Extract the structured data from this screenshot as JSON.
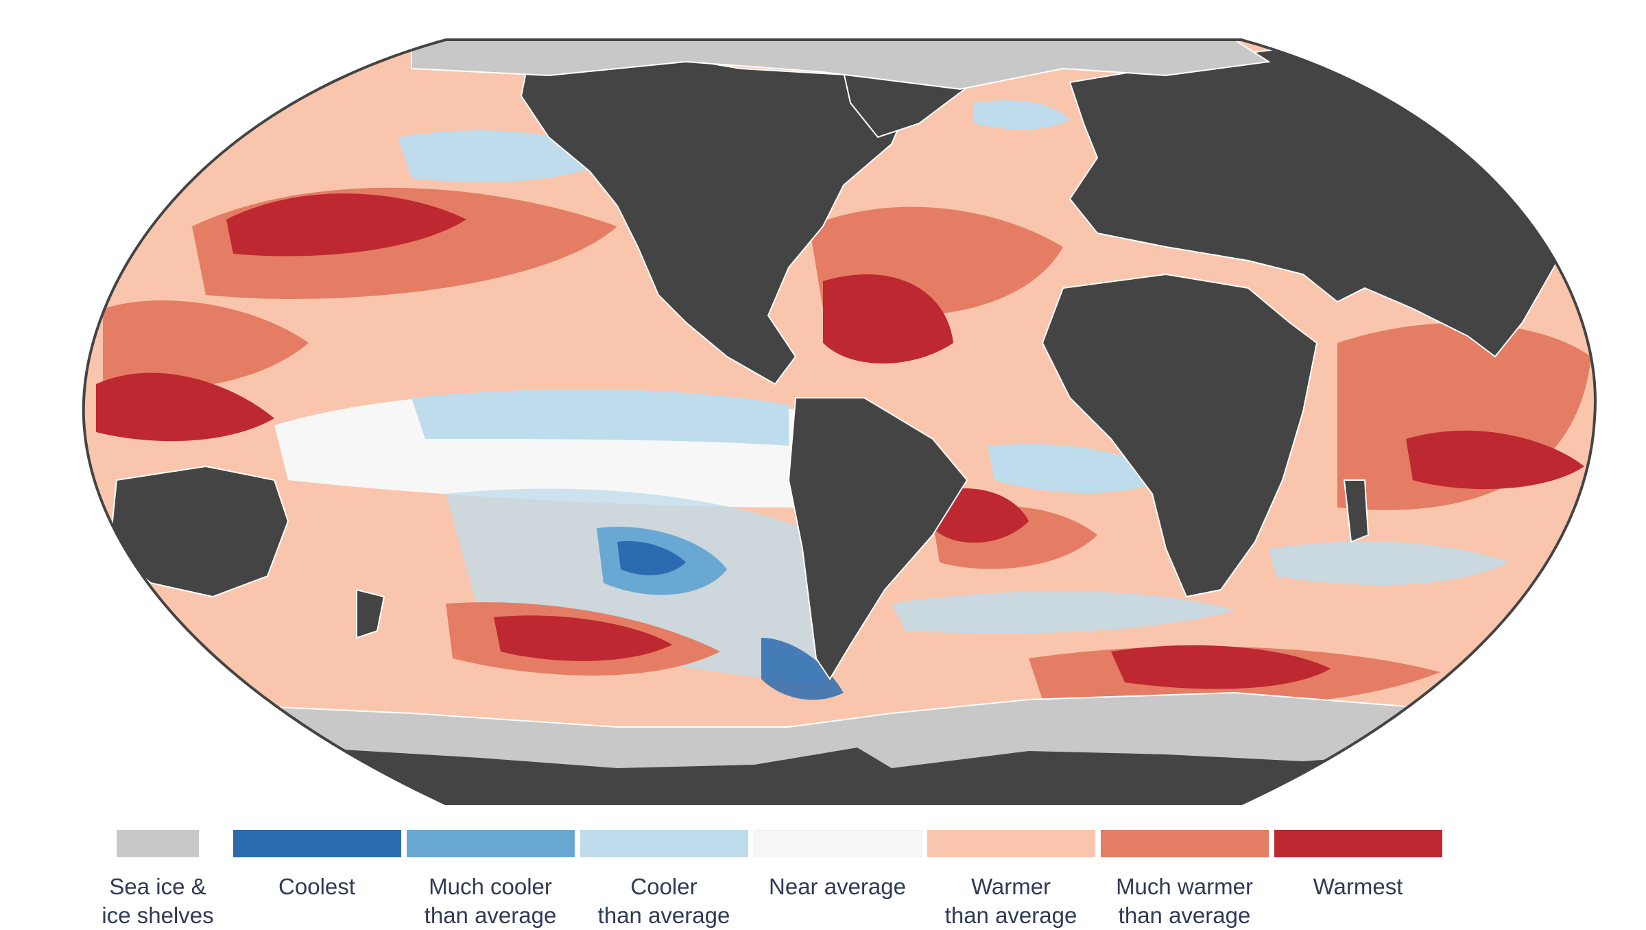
{
  "map": {
    "projection": "robinson",
    "colors": {
      "ocean_background": "#444444",
      "land": "#444444",
      "sea_ice": "#c8c8c8",
      "coastline": "#ffffff"
    }
  },
  "legend": {
    "items": [
      {
        "label": "Sea ice &\nice shelves",
        "color": "#c8c8c8",
        "category": "sea-ice"
      },
      {
        "label": "Coolest",
        "color": "#2b6cb0",
        "category": "coolest"
      },
      {
        "label": "Much cooler\nthan average",
        "color": "#6aa8d4",
        "category": "much-cooler"
      },
      {
        "label": "Cooler\nthan average",
        "color": "#bedcec",
        "category": "cooler"
      },
      {
        "label": "Near average",
        "color": "#f7f7f7",
        "category": "near-average"
      },
      {
        "label": "Warmer\nthan average",
        "color": "#f9c6ad",
        "category": "warmer"
      },
      {
        "label": "Much warmer\nthan average",
        "color": "#e47d64",
        "category": "much-warmer"
      },
      {
        "label": "Warmest",
        "color": "#be2830",
        "category": "warmest"
      }
    ]
  }
}
